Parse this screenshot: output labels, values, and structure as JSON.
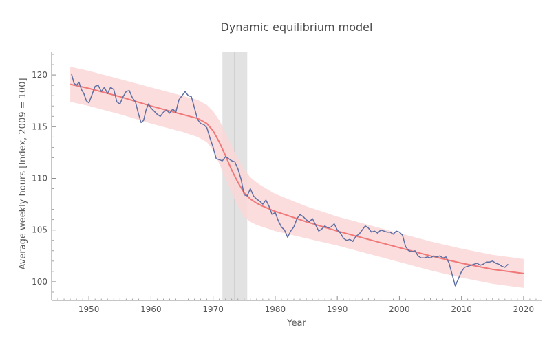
{
  "chart_data": {
    "type": "line",
    "title": "Dynamic equilibrium model",
    "xlabel": "Year",
    "ylabel": "Average weekly hours [Index, 2009 = 100]",
    "xlim": [
      1944,
      2023
    ],
    "ylim": [
      98.2,
      122.2
    ],
    "x_ticks": [
      1950,
      1960,
      1970,
      1980,
      1990,
      2000,
      2010,
      2020
    ],
    "y_ticks": [
      100,
      105,
      110,
      115,
      120
    ],
    "shock": {
      "center": 1973.5,
      "band": [
        1971.5,
        1975.5
      ]
    },
    "model": {
      "name": "",
      "x": [
        1947,
        1950,
        1955,
        1960,
        1965,
        1967.5,
        1969,
        1970,
        1971,
        1972,
        1973,
        1974,
        1975,
        1976,
        1977,
        1978,
        1980,
        1985,
        1990,
        1995,
        2000,
        2005,
        2010,
        2015,
        2020
      ],
      "y": [
        119.1,
        118.7,
        117.9,
        117.0,
        116.2,
        115.8,
        115.3,
        114.6,
        113.5,
        112.2,
        110.8,
        109.6,
        108.6,
        108.0,
        107.6,
        107.3,
        106.8,
        105.8,
        104.9,
        104.1,
        103.3,
        102.5,
        101.8,
        101.2,
        100.8
      ],
      "upper": [
        120.8,
        120.4,
        119.6,
        118.8,
        118.0,
        117.6,
        117.1,
        116.5,
        115.6,
        114.4,
        113.1,
        111.9,
        110.9,
        110.1,
        109.6,
        109.2,
        108.5,
        107.3,
        106.3,
        105.5,
        104.7,
        103.9,
        103.2,
        102.6,
        102.2
      ],
      "lower": [
        117.4,
        117.0,
        116.2,
        115.3,
        114.5,
        114.0,
        113.5,
        112.7,
        111.4,
        110.0,
        108.6,
        107.3,
        106.3,
        105.8,
        105.5,
        105.3,
        104.9,
        104.2,
        103.5,
        102.7,
        101.9,
        101.1,
        100.4,
        99.8,
        99.4
      ]
    },
    "series": [
      {
        "name": "",
        "x": [
          1947.2,
          1947.6,
          1948.0,
          1948.4,
          1948.8,
          1949.2,
          1949.6,
          1950.0,
          1950.5,
          1951.0,
          1951.5,
          1952.0,
          1952.5,
          1953.0,
          1953.5,
          1954.0,
          1954.5,
          1955.0,
          1955.5,
          1956.0,
          1956.5,
          1957.0,
          1957.5,
          1958.0,
          1958.4,
          1958.8,
          1959.2,
          1959.6,
          1960.0,
          1960.5,
          1961.0,
          1961.5,
          1962.0,
          1962.5,
          1963.0,
          1963.5,
          1964.0,
          1964.5,
          1965.0,
          1965.5,
          1966.0,
          1966.5,
          1967.0,
          1967.5,
          1968.0,
          1968.5,
          1969.0,
          1969.5,
          1970.0,
          1970.5,
          1971.0,
          1971.5,
          1972.0,
          1972.5,
          1973.0,
          1973.5,
          1974.0,
          1974.5,
          1975.0,
          1975.5,
          1976.0,
          1976.5,
          1977.0,
          1977.5,
          1978.0,
          1978.5,
          1979.0,
          1979.5,
          1980.0,
          1980.5,
          1981.0,
          1981.5,
          1982.0,
          1982.5,
          1983.0,
          1983.5,
          1984.0,
          1984.5,
          1985.0,
          1985.5,
          1986.0,
          1986.5,
          1987.0,
          1987.5,
          1988.0,
          1988.5,
          1989.0,
          1989.5,
          1990.0,
          1990.5,
          1991.0,
          1991.5,
          1992.0,
          1992.5,
          1993.0,
          1993.5,
          1994.0,
          1994.5,
          1995.0,
          1995.5,
          1996.0,
          1996.5,
          1997.0,
          1997.5,
          1998.0,
          1998.5,
          1999.0,
          1999.5,
          2000.0,
          2000.5,
          2001.0,
          2001.5,
          2002.0,
          2002.5,
          2003.0,
          2003.5,
          2004.0,
          2004.5,
          2005.0,
          2005.5,
          2006.0,
          2006.5,
          2007.0,
          2007.5,
          2008.0,
          2008.5,
          2009.0,
          2009.5,
          2010.0,
          2010.5,
          2011.0,
          2011.5,
          2012.0,
          2012.5,
          2013.0,
          2013.5,
          2014.0,
          2014.5,
          2015.0,
          2015.5,
          2016.0,
          2016.5,
          2017.0,
          2017.5
        ],
        "y": [
          120.1,
          119.2,
          119.0,
          119.3,
          118.6,
          118.2,
          117.5,
          117.3,
          118.1,
          118.9,
          119.0,
          118.4,
          118.8,
          118.2,
          118.8,
          118.6,
          117.4,
          117.2,
          117.9,
          118.4,
          118.5,
          117.8,
          117.4,
          116.2,
          115.4,
          115.6,
          116.6,
          117.2,
          116.8,
          116.5,
          116.2,
          116.0,
          116.4,
          116.6,
          116.3,
          116.7,
          116.4,
          117.6,
          118.0,
          118.4,
          118.0,
          117.9,
          116.8,
          115.7,
          115.3,
          115.2,
          114.9,
          113.9,
          113.0,
          111.9,
          111.8,
          111.7,
          112.1,
          111.9,
          111.7,
          111.6,
          110.9,
          109.9,
          108.4,
          108.3,
          109.0,
          108.3,
          108.0,
          107.8,
          107.5,
          107.9,
          107.3,
          106.5,
          106.7,
          105.9,
          105.3,
          105.0,
          104.3,
          104.9,
          105.3,
          106.1,
          106.5,
          106.3,
          106.0,
          105.8,
          106.1,
          105.5,
          104.9,
          105.1,
          105.4,
          105.2,
          105.3,
          105.6,
          105.0,
          104.7,
          104.2,
          104.0,
          104.1,
          103.9,
          104.4,
          104.6,
          105.0,
          105.4,
          105.2,
          104.8,
          104.9,
          104.7,
          105.0,
          104.9,
          104.8,
          104.8,
          104.6,
          104.9,
          104.8,
          104.5,
          103.4,
          103.0,
          102.9,
          103.0,
          102.5,
          102.3,
          102.3,
          102.4,
          102.3,
          102.5,
          102.4,
          102.5,
          102.3,
          102.4,
          101.8,
          100.7,
          99.6,
          100.3,
          101.0,
          101.4,
          101.5,
          101.6,
          101.7,
          101.8,
          101.6,
          101.7,
          101.9,
          101.9,
          102.0,
          101.8,
          101.7,
          101.5,
          101.4,
          101.7
        ]
      }
    ],
    "colors": {
      "series_line": "#5e6fa3",
      "model_line": "#f07878",
      "model_band": "#fcd7d7",
      "shock_band": "#e2e2e2",
      "shock_line": "#9a9a9a",
      "axis": "#8c8c8c",
      "text": "#555555"
    }
  }
}
